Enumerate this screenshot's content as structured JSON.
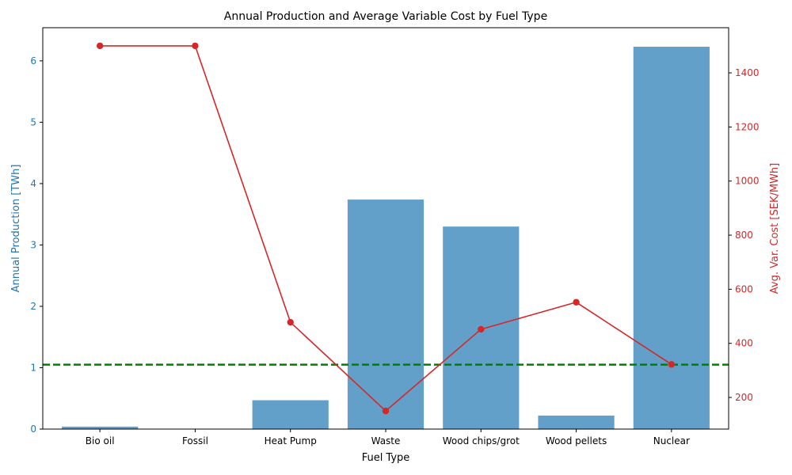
{
  "chart_data": {
    "type": "bar",
    "title": "Annual Production and Average Variable Cost by Fuel Type",
    "xlabel": "Fuel Type",
    "categories": [
      "Bio oil",
      "Fossil",
      "Heat Pump",
      "Waste",
      "Wood chips/grot",
      "Wood pellets",
      "Nuclear"
    ],
    "series": [
      {
        "type": "bar",
        "axis": "left",
        "values": [
          0.04,
          0.0,
          0.47,
          3.74,
          3.3,
          0.22,
          6.23
        ],
        "color": "#1f77b4"
      },
      {
        "type": "line",
        "axis": "right",
        "values": [
          1500,
          1500,
          478,
          150,
          452,
          552,
          322
        ],
        "color": "#d62728"
      }
    ],
    "left_axis": {
      "label": "Annual Production [TWh]",
      "ylim": [
        0,
        6.54
      ],
      "ticks": [
        0,
        1,
        2,
        3,
        4,
        5,
        6
      ],
      "tick_labels": [
        "0",
        "1",
        "2",
        "3",
        "4",
        "5",
        "6"
      ],
      "color": "#1f77b4"
    },
    "right_axis": {
      "label": "Avg. Var. Cost [SEK/MWh]",
      "ylim": [
        83,
        1567
      ],
      "ticks": [
        200,
        400,
        600,
        800,
        1000,
        1200,
        1400
      ],
      "tick_labels": [
        "200",
        "400",
        "600",
        "800",
        "1000",
        "1200",
        "1400"
      ],
      "color": "#d62728"
    },
    "reference_line": {
      "axis": "left",
      "value": 1.05,
      "color": "#008000",
      "style": "dashed"
    },
    "grid": false
  }
}
